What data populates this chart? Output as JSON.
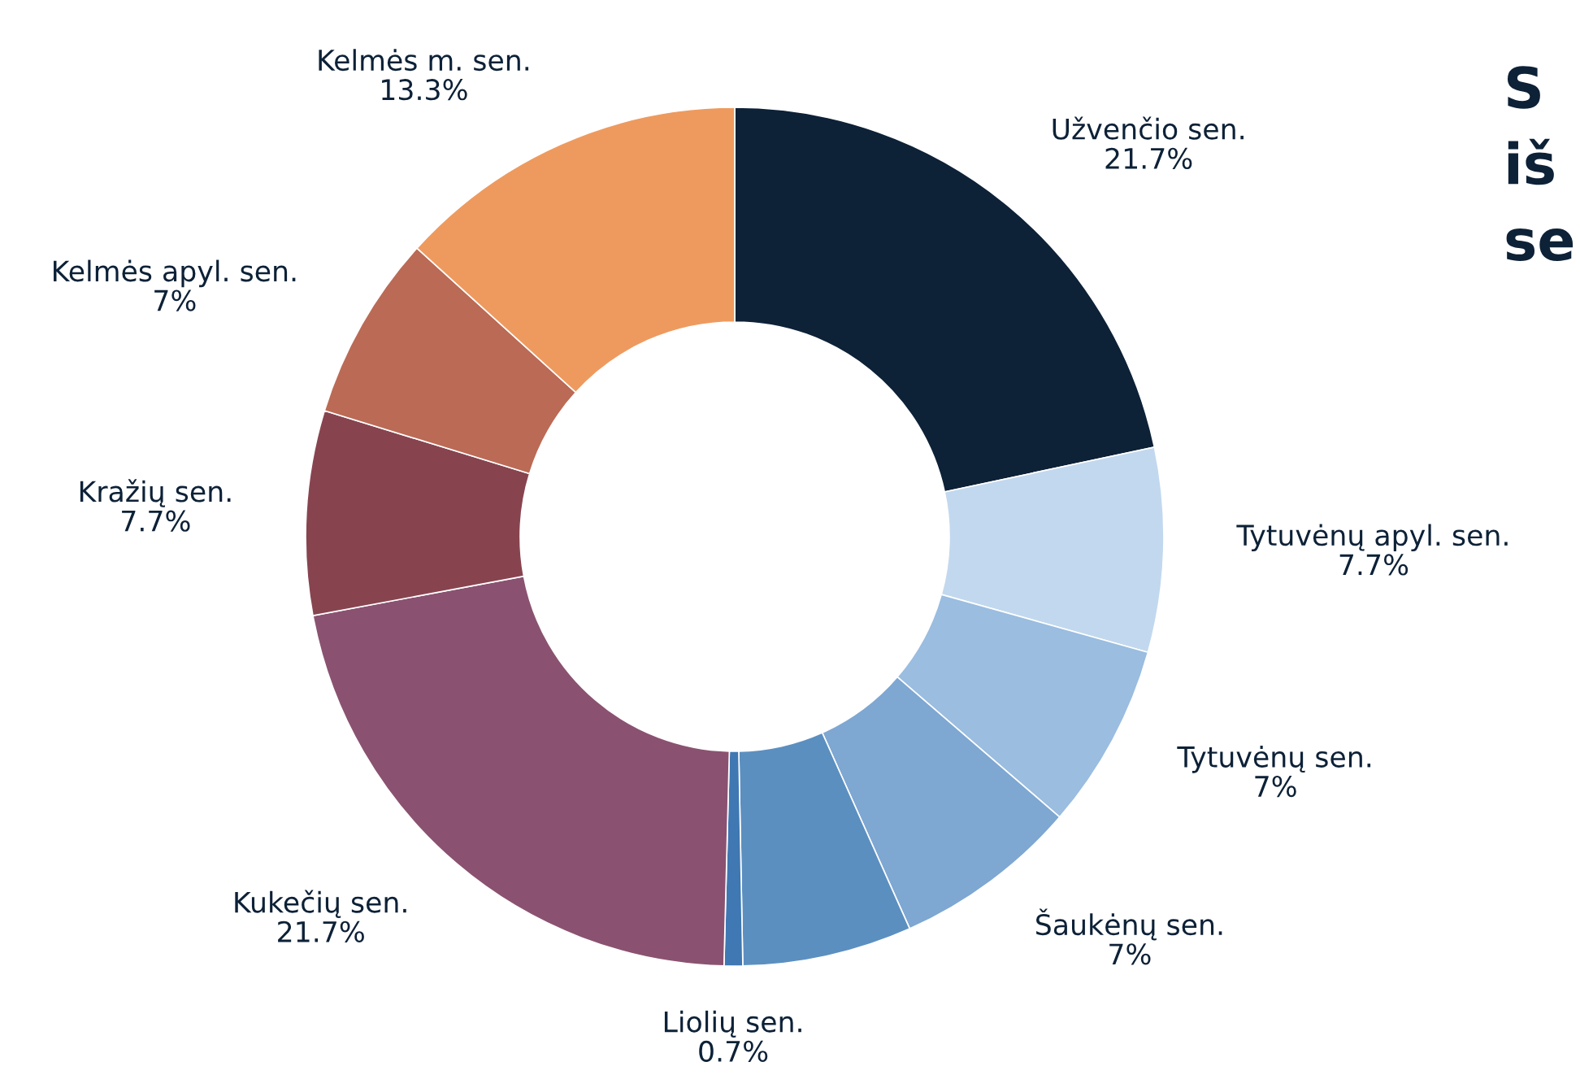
{
  "chart_data": {
    "type": "donut",
    "title": "S\niš\nse",
    "categories": [
      "Užvenčio sen.",
      "Tytuvėnų apyl. sen.",
      "Tytuvėnų sen.",
      "Šaukėnų sen.",
      null,
      "Liolių sen.",
      "Kukečių sen.",
      "Kražių sen.",
      "Kelmės apyl. sen.",
      "Kelmės m. sen."
    ],
    "values": [
      21.7,
      7.7,
      7,
      7,
      6.4,
      0.7,
      21.7,
      7.7,
      7,
      13.3
    ],
    "value_labels": [
      "21.7%",
      "7.7%",
      "7%",
      "7%",
      null,
      "0.7%",
      "21.7%",
      "7.7%",
      "7%",
      "13.3%"
    ],
    "colors": [
      "#0d2137",
      "#c2d8ee",
      "#9abde0",
      "#7ea7d2",
      "#5b8fc0",
      "#3f78b2",
      "#8a5270",
      "#87444f",
      "#bb6a55",
      "#ee9a5f"
    ],
    "legend": false
  }
}
